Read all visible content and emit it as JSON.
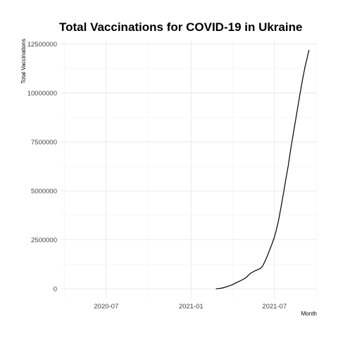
{
  "chart_data": {
    "type": "line",
    "title": "Total Vaccinations for COVID-19 in Ukraine",
    "xlabel": "Month",
    "ylabel": "Total Vaccinations",
    "x_axis_type": "date",
    "xlim": [
      "2020-03-24",
      "2021-10-01"
    ],
    "ylim": [
      -500000,
      12700000
    ],
    "x_ticks": [
      {
        "date": "2020-07-01",
        "label": "2020-07"
      },
      {
        "date": "2021-01-01",
        "label": "2021-01"
      },
      {
        "date": "2021-07-01",
        "label": "2021-07"
      }
    ],
    "y_ticks": [
      {
        "value": 0,
        "label": "0"
      },
      {
        "value": 2500000,
        "label": "2500000"
      },
      {
        "value": 5000000,
        "label": "5000000"
      },
      {
        "value": 7500000,
        "label": "7500000"
      },
      {
        "value": 10000000,
        "label": "10000000"
      },
      {
        "value": 12500000,
        "label": "12500000"
      }
    ],
    "grid": true,
    "legend": "none",
    "line_color": "#000000",
    "series": [
      {
        "points": [
          [
            "2021-02-24",
            0
          ],
          [
            "2021-03-01",
            10000
          ],
          [
            "2021-03-10",
            40000
          ],
          [
            "2021-03-20",
            110000
          ],
          [
            "2021-03-31",
            200000
          ],
          [
            "2021-04-10",
            320000
          ],
          [
            "2021-04-20",
            430000
          ],
          [
            "2021-04-30",
            560000
          ],
          [
            "2021-05-05",
            680000
          ],
          [
            "2021-05-10",
            790000
          ],
          [
            "2021-05-20",
            920000
          ],
          [
            "2021-05-31",
            1030000
          ],
          [
            "2021-06-05",
            1150000
          ],
          [
            "2021-06-10",
            1380000
          ],
          [
            "2021-06-15",
            1650000
          ],
          [
            "2021-06-20",
            1950000
          ],
          [
            "2021-06-25",
            2250000
          ],
          [
            "2021-06-30",
            2580000
          ],
          [
            "2021-07-05",
            3000000
          ],
          [
            "2021-07-10",
            3500000
          ],
          [
            "2021-07-15",
            4150000
          ],
          [
            "2021-07-20",
            4800000
          ],
          [
            "2021-07-25",
            5500000
          ],
          [
            "2021-07-31",
            6300000
          ],
          [
            "2021-08-05",
            7100000
          ],
          [
            "2021-08-10",
            7800000
          ],
          [
            "2021-08-15",
            8500000
          ],
          [
            "2021-08-20",
            9200000
          ],
          [
            "2021-08-25",
            9900000
          ],
          [
            "2021-08-31",
            10700000
          ],
          [
            "2021-09-05",
            11300000
          ],
          [
            "2021-09-10",
            11800000
          ],
          [
            "2021-09-14",
            12200000
          ]
        ]
      }
    ]
  }
}
